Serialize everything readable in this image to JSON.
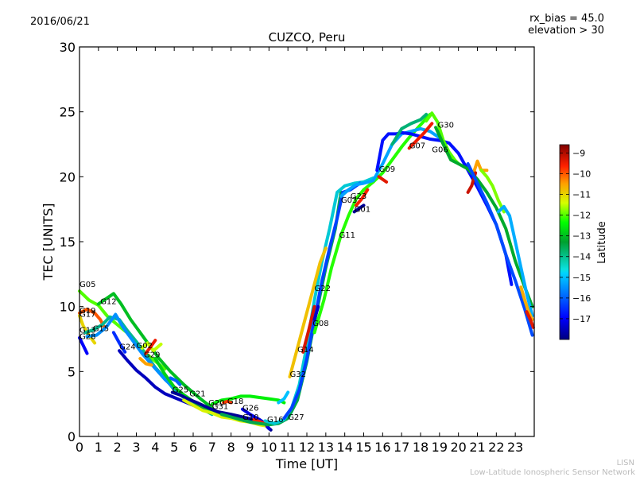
{
  "chart_data": {
    "type": "line",
    "title": "CUZCO, Peru",
    "date": "2016/06/21",
    "annotations": [
      "rx_bias = 45.0",
      "elevation > 30"
    ],
    "xlabel": "Time [UT]",
    "ylabel": "TEC [UNITS]",
    "xlim": [
      0,
      24
    ],
    "ylim": [
      0,
      30
    ],
    "xticks": [
      "0",
      "1",
      "2",
      "3",
      "4",
      "5",
      "6",
      "7",
      "8",
      "9",
      "10",
      "11",
      "12",
      "13",
      "14",
      "15",
      "16",
      "17",
      "18",
      "19",
      "20",
      "21",
      "22",
      "23"
    ],
    "yticks": [
      "0",
      "5",
      "10",
      "15",
      "20",
      "25",
      "30"
    ],
    "colorbar": {
      "label": "Latitude",
      "range": [
        -18,
        -8.6
      ],
      "ticks": [
        "−9",
        "−10",
        "−11",
        "−12",
        "−13",
        "−14",
        "−15",
        "−16",
        "−17"
      ],
      "tick_values": [
        -9,
        -10,
        -11,
        -12,
        -13,
        -14,
        -15,
        -16,
        -17
      ]
    },
    "satellite_labels": [
      {
        "name": "G05",
        "t": 0.0,
        "tec": 11.5
      },
      {
        "name": "G12",
        "t": 1.1,
        "tec": 10.2
      },
      {
        "name": "G19",
        "t": 0.0,
        "tec": 9.5
      },
      {
        "name": "G17",
        "t": 0.0,
        "tec": 9.2
      },
      {
        "name": "G13",
        "t": 0.0,
        "tec": 8.0
      },
      {
        "name": "G15",
        "t": 0.7,
        "tec": 8.1
      },
      {
        "name": "G28",
        "t": 0.0,
        "tec": 7.5
      },
      {
        "name": "G24",
        "t": 2.1,
        "tec": 6.7
      },
      {
        "name": "G02",
        "t": 3.0,
        "tec": 6.8
      },
      {
        "name": "G29",
        "t": 3.4,
        "tec": 6.1
      },
      {
        "name": "G25",
        "t": 4.9,
        "tec": 3.4
      },
      {
        "name": "G21",
        "t": 5.8,
        "tec": 3.1
      },
      {
        "name": "G20",
        "t": 6.8,
        "tec": 2.4
      },
      {
        "name": "G31",
        "t": 7.0,
        "tec": 2.1
      },
      {
        "name": "G18",
        "t": 7.8,
        "tec": 2.5
      },
      {
        "name": "G26",
        "t": 8.6,
        "tec": 2.0
      },
      {
        "name": "G10",
        "t": 8.6,
        "tec": 1.3
      },
      {
        "name": "G16",
        "t": 9.9,
        "tec": 1.1
      },
      {
        "name": "G27",
        "t": 11.0,
        "tec": 1.3
      },
      {
        "name": "G32",
        "t": 11.1,
        "tec": 4.6
      },
      {
        "name": "G14",
        "t": 11.5,
        "tec": 6.5
      },
      {
        "name": "G08",
        "t": 12.3,
        "tec": 8.5
      },
      {
        "name": "G22",
        "t": 12.4,
        "tec": 11.2
      },
      {
        "name": "G11",
        "t": 13.7,
        "tec": 15.3
      },
      {
        "name": "G03",
        "t": 13.8,
        "tec": 18.0
      },
      {
        "name": "G23",
        "t": 14.3,
        "tec": 18.3
      },
      {
        "name": "G01",
        "t": 14.5,
        "tec": 17.3
      },
      {
        "name": "G09",
        "t": 15.8,
        "tec": 20.4
      },
      {
        "name": "G07",
        "t": 17.4,
        "tec": 22.2
      },
      {
        "name": "G06",
        "t": 18.6,
        "tec": 21.9
      },
      {
        "name": "G30",
        "t": 18.9,
        "tec": 23.8
      }
    ],
    "series": [
      {
        "lat": -12.0,
        "t": [
          0,
          0.5,
          1.0,
          1.5,
          2.0,
          2.5,
          3.0,
          3.5,
          4.0,
          4.5
        ],
        "tec": [
          11.2,
          10.5,
          10.1,
          9.2,
          8.6,
          8.0,
          7.2,
          6.4,
          5.8,
          5.2
        ]
      },
      {
        "lat": -13.0,
        "t": [
          1.0,
          1.5,
          1.8,
          2.2,
          2.7,
          3.2,
          3.7,
          4.2,
          4.8,
          5.5,
          6.3,
          7.0
        ],
        "tec": [
          10.2,
          10.7,
          11.0,
          10.2,
          9.0,
          8.0,
          7.0,
          6.0,
          5.0,
          4.0,
          3.0,
          2.2
        ]
      },
      {
        "lat": -10.0,
        "t": [
          0,
          0.4,
          0.8,
          1.1,
          1.3
        ],
        "tec": [
          9.5,
          9.8,
          9.5,
          9.0,
          8.4
        ]
      },
      {
        "lat": -11.0,
        "t": [
          0,
          0.2,
          0.5,
          0.8
        ],
        "tec": [
          9.3,
          8.5,
          7.8,
          7.2
        ]
      },
      {
        "lat": -14.0,
        "t": [
          0.3,
          0.7,
          1.2,
          1.6,
          2.1,
          2.5,
          3.0,
          3.5,
          4.0,
          4.5,
          5.0,
          5.5,
          6.0,
          6.5,
          7.0
        ],
        "tec": [
          8.0,
          8.2,
          8.6,
          9.2,
          9.0,
          8.2,
          7.3,
          6.3,
          5.3,
          4.5,
          3.6,
          3.0,
          2.5,
          2.1,
          1.7
        ]
      },
      {
        "lat": -15.5,
        "t": [
          0.4,
          0.9,
          1.4,
          1.9,
          2.3,
          2.8,
          3.3,
          3.9,
          4.5,
          5.0,
          5.6,
          6.2,
          6.8,
          7.5
        ],
        "tec": [
          7.7,
          7.8,
          8.4,
          9.4,
          8.4,
          7.4,
          6.4,
          5.4,
          4.4,
          3.7,
          3.0,
          2.5,
          2.0,
          1.6
        ]
      },
      {
        "lat": -17.0,
        "t": [
          0,
          0.2,
          0.4
        ],
        "tec": [
          7.6,
          7.0,
          6.4
        ]
      },
      {
        "lat": -16.5,
        "t": [
          1.8,
          2.1,
          2.4
        ],
        "tec": [
          8.0,
          7.2,
          6.5
        ]
      },
      {
        "lat": -17.5,
        "t": [
          2.1,
          2.5,
          3.0,
          3.5,
          4.0,
          4.5,
          5.0,
          5.5,
          6.0,
          6.5,
          7.0,
          7.5,
          8.0
        ],
        "tec": [
          6.6,
          5.9,
          5.1,
          4.5,
          3.8,
          3.3,
          3.0,
          2.7,
          2.4,
          2.1,
          1.9,
          1.7,
          1.5
        ]
      },
      {
        "lat": -11.5,
        "t": [
          3.3,
          3.6,
          3.9,
          4.3
        ],
        "tec": [
          6.8,
          7.2,
          6.6,
          7.1
        ]
      },
      {
        "lat": -9.5,
        "t": [
          3.5,
          3.8,
          4.0
        ],
        "tec": [
          6.4,
          7.0,
          7.4
        ]
      },
      {
        "lat": -10.5,
        "t": [
          3.2,
          3.5,
          3.8
        ],
        "tec": [
          6.0,
          5.6,
          5.5
        ]
      },
      {
        "lat": -12.8,
        "t": [
          4.0,
          4.5,
          5.0,
          5.5,
          6.0,
          6.5,
          7.0,
          7.5,
          8.0,
          8.5,
          9.0,
          9.5,
          10.0
        ],
        "tec": [
          6.0,
          4.8,
          3.8,
          3.2,
          2.7,
          2.3,
          2.0,
          1.8,
          1.6,
          1.4,
          1.2,
          1.0,
          0.9
        ]
      },
      {
        "lat": -16.0,
        "t": [
          4.8,
          5.1,
          5.3
        ],
        "tec": [
          4.5,
          4.3,
          4.0
        ]
      },
      {
        "lat": -17.8,
        "t": [
          4.9,
          5.3,
          5.7,
          6.2,
          6.8,
          7.3,
          8.0,
          8.6,
          9.2,
          9.7,
          10.1
        ],
        "tec": [
          3.4,
          3.2,
          2.9,
          2.6,
          2.2,
          1.9,
          1.7,
          1.5,
          1.3,
          1.0,
          0.5
        ]
      },
      {
        "lat": -11.3,
        "t": [
          5.5,
          6.0,
          6.5,
          7.0,
          7.5,
          8.0,
          8.5,
          9.0,
          9.5,
          9.9
        ],
        "tec": [
          2.8,
          2.4,
          2.0,
          1.8,
          1.5,
          1.4,
          1.2,
          1.1,
          0.9,
          0.8
        ]
      },
      {
        "lat": -12.5,
        "t": [
          7.0,
          7.5,
          8.0,
          8.5,
          9.0,
          9.5,
          10.0,
          10.5,
          10.8
        ],
        "tec": [
          2.5,
          2.8,
          2.9,
          3.1,
          3.1,
          3.0,
          2.9,
          2.8,
          2.6
        ]
      },
      {
        "lat": -15.0,
        "t": [
          10.5,
          10.8,
          11.0
        ],
        "tec": [
          2.6,
          2.9,
          3.4
        ]
      },
      {
        "lat": -9.8,
        "t": [
          7.6,
          7.8,
          8.0
        ],
        "tec": [
          2.6,
          2.7,
          2.6
        ]
      },
      {
        "lat": -17.2,
        "t": [
          8.6,
          9.0,
          9.5,
          9.8,
          10.0
        ],
        "tec": [
          2.1,
          1.7,
          1.3,
          1.0,
          0.6
        ]
      },
      {
        "lat": -9.6,
        "t": [
          9.2,
          9.6,
          9.9
        ],
        "tec": [
          1.3,
          1.1,
          0.9
        ]
      },
      {
        "lat": -13.5,
        "t": [
          7.5,
          8.0,
          8.5,
          9.0,
          9.5,
          10.0,
          10.5,
          11.0,
          11.5,
          12.0,
          12.5,
          13.0,
          13.5,
          13.8
        ],
        "tec": [
          1.7,
          1.5,
          1.3,
          1.1,
          1.0,
          0.9,
          1.0,
          1.4,
          2.8,
          5.8,
          9.5,
          13.0,
          16.0,
          18.8
        ]
      },
      {
        "lat": -14.5,
        "t": [
          9.8,
          10.3,
          10.8,
          11.2,
          11.6,
          12.0,
          12.4,
          12.8,
          13.2,
          13.6,
          14.0,
          14.5,
          15.0,
          15.5
        ],
        "tec": [
          1.2,
          1.0,
          1.3,
          2.2,
          4.0,
          7.0,
          10.5,
          13.5,
          16.0,
          18.8,
          19.3,
          19.5,
          19.6,
          19.9
        ]
      },
      {
        "lat": -16.3,
        "t": [
          10.8,
          11.2,
          11.6,
          12.0,
          12.4,
          12.8,
          13.2,
          13.6,
          13.9,
          14.3,
          14.8
        ],
        "tec": [
          1.4,
          2.2,
          3.6,
          6.0,
          9.0,
          12.0,
          14.5,
          16.8,
          18.8,
          19.0,
          19.5
        ]
      },
      {
        "lat": -10.8,
        "t": [
          11.1,
          11.5,
          11.9,
          12.3,
          12.7,
          13.0
        ],
        "tec": [
          4.6,
          6.8,
          9.0,
          11.2,
          13.4,
          14.5
        ]
      },
      {
        "lat": -9.3,
        "t": [
          11.8,
          12.1,
          12.4
        ],
        "tec": [
          6.5,
          8.2,
          10.0
        ]
      },
      {
        "lat": -17.4,
        "t": [
          12.4,
          12.6
        ],
        "tec": [
          9.0,
          10.0
        ]
      },
      {
        "lat": -12.2,
        "t": [
          12.4,
          12.9,
          13.3,
          13.8,
          14.2,
          14.6,
          15.0,
          15.5,
          16.0,
          16.5,
          17.0,
          17.5,
          18.0,
          18.5
        ],
        "tec": [
          8.0,
          10.5,
          13.0,
          15.5,
          17.0,
          18.3,
          19.0,
          19.6,
          20.3,
          21.3,
          22.3,
          23.2,
          24.0,
          24.8
        ]
      },
      {
        "lat": -15.3,
        "t": [
          13.8,
          14.2,
          14.6,
          15.0,
          15.5,
          16.0,
          16.5,
          17.0,
          17.5,
          18.0,
          18.5,
          19.0
        ],
        "tec": [
          18.5,
          19.0,
          19.4,
          19.5,
          19.7,
          21.0,
          22.5,
          23.3,
          23.5,
          23.7,
          23.5,
          23.0
        ]
      },
      {
        "lat": -9.6,
        "t": [
          14.6,
          14.9,
          15.2
        ],
        "tec": [
          17.8,
          18.3,
          19.0
        ]
      },
      {
        "lat": -17.8,
        "t": [
          14.5,
          14.7,
          15.0
        ],
        "tec": [
          17.3,
          17.5,
          17.8
        ]
      },
      {
        "lat": -9.4,
        "t": [
          15.8,
          16.0,
          16.2
        ],
        "tec": [
          20.0,
          19.8,
          19.6
        ]
      },
      {
        "lat": -16.8,
        "t": [
          15.7,
          16.0,
          16.3,
          16.7,
          17.0,
          17.5,
          18.0,
          18.5,
          19.0,
          19.5,
          20.0,
          20.5,
          21.0,
          21.5,
          22.0,
          22.5,
          22.8
        ],
        "tec": [
          20.5,
          22.8,
          23.3,
          23.3,
          23.4,
          23.3,
          23.1,
          22.9,
          22.8,
          22.6,
          21.8,
          20.5,
          19.2,
          17.8,
          16.3,
          14.0,
          11.7
        ]
      },
      {
        "lat": -13.8,
        "t": [
          16.5,
          17.0,
          17.5,
          18.0,
          18.3
        ],
        "tec": [
          22.5,
          23.7,
          24.1,
          24.4,
          24.8
        ]
      },
      {
        "lat": -9.5,
        "t": [
          17.4,
          17.8,
          18.2,
          18.6
        ],
        "tec": [
          22.2,
          22.8,
          23.4,
          24.1
        ]
      },
      {
        "lat": -12.0,
        "t": [
          18.3,
          18.6,
          18.9,
          19.2,
          19.5,
          19.8,
          20.0
        ],
        "tec": [
          24.3,
          24.9,
          24.2,
          22.8,
          21.9,
          21.3,
          21.0
        ]
      },
      {
        "lat": -13.2,
        "t": [
          18.8,
          19.2,
          19.6,
          20.0,
          20.5,
          21.0,
          21.5,
          22.0,
          22.5,
          23.0,
          23.5,
          23.9
        ],
        "tec": [
          23.8,
          22.5,
          21.3,
          21.0,
          20.6,
          19.8,
          18.8,
          17.6,
          16.0,
          13.5,
          11.5,
          10.0
        ]
      },
      {
        "lat": -10.5,
        "t": [
          20.8,
          21.0,
          21.2,
          21.5
        ],
        "tec": [
          20.3,
          21.2,
          20.5,
          20.5
        ]
      },
      {
        "lat": -9.2,
        "t": [
          20.5,
          20.7,
          20.9
        ],
        "tec": [
          18.8,
          19.3,
          20.3
        ]
      },
      {
        "lat": -11.8,
        "t": [
          21.2,
          21.5,
          21.8,
          22.1,
          22.4
        ],
        "tec": [
          20.5,
          20.0,
          19.3,
          18.2,
          17.3
        ]
      },
      {
        "lat": -15.2,
        "t": [
          22.1,
          22.4,
          22.7,
          23.0,
          23.3,
          23.6,
          23.9
        ],
        "tec": [
          17.3,
          17.7,
          17.0,
          15.0,
          13.0,
          11.0,
          9.3
        ]
      },
      {
        "lat": -16.2,
        "t": [
          20.5,
          21.0,
          21.5,
          22.0,
          22.5,
          23.0,
          23.5,
          23.9
        ],
        "tec": [
          21.0,
          19.5,
          18.0,
          16.3,
          14.0,
          12.0,
          9.8,
          7.8
        ]
      },
      {
        "lat": -10.6,
        "t": [
          23.3,
          23.5,
          23.7,
          23.9
        ],
        "tec": [
          11.5,
          10.5,
          9.6,
          9.0
        ]
      },
      {
        "lat": -9.4,
        "t": [
          23.6,
          23.8,
          23.95
        ],
        "tec": [
          9.6,
          9.0,
          8.4
        ]
      }
    ]
  },
  "footer": {
    "network_short": "LISN",
    "network_full": "Low-Latitude Ionospheric Sensor Network"
  }
}
